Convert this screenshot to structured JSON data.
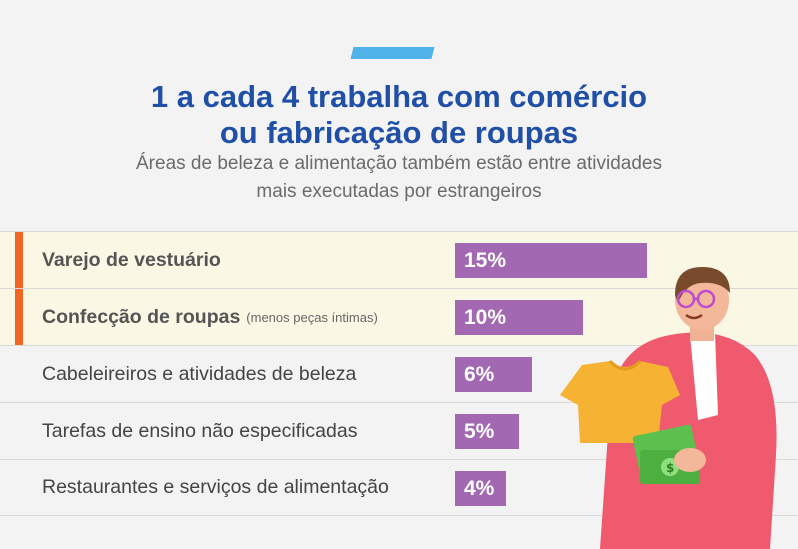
{
  "header": {
    "title_line1": "1 a cada 4 trabalha com comércio",
    "title_line2": "ou fabricação de roupas",
    "subtitle_line1": "Áreas de beleza e alimentação também estão entre atividades",
    "subtitle_line2": "mais executadas por estrangeiros"
  },
  "colors": {
    "title": "#1f4fa6",
    "bar": "#a268b1",
    "marker": "#f26522",
    "highlight_row": "#faf7e4",
    "accent": "#4fb3ea"
  },
  "chart_data": {
    "type": "bar",
    "orientation": "horizontal",
    "title": "1 a cada 4 trabalha com comércio ou fabricação de roupas",
    "subtitle": "Áreas de beleza e alimentação também estão entre atividades mais executadas por estrangeiros",
    "categories": [
      "Varejo de vestuário",
      "Confecção de roupas",
      "Cabeleireiros e atividades de beleza",
      "Tarefas de ensino não especificadas",
      "Restaurantes e serviços de alimentação"
    ],
    "category_notes": [
      "",
      "(menos peças íntimas)",
      "",
      "",
      ""
    ],
    "values": [
      15,
      10,
      6,
      5,
      4
    ],
    "value_labels": [
      "15%",
      "10%",
      "6%",
      "5%",
      "4%"
    ],
    "highlighted": [
      true,
      true,
      false,
      false,
      false
    ],
    "unit": "%",
    "xlim": [
      0,
      15
    ]
  }
}
